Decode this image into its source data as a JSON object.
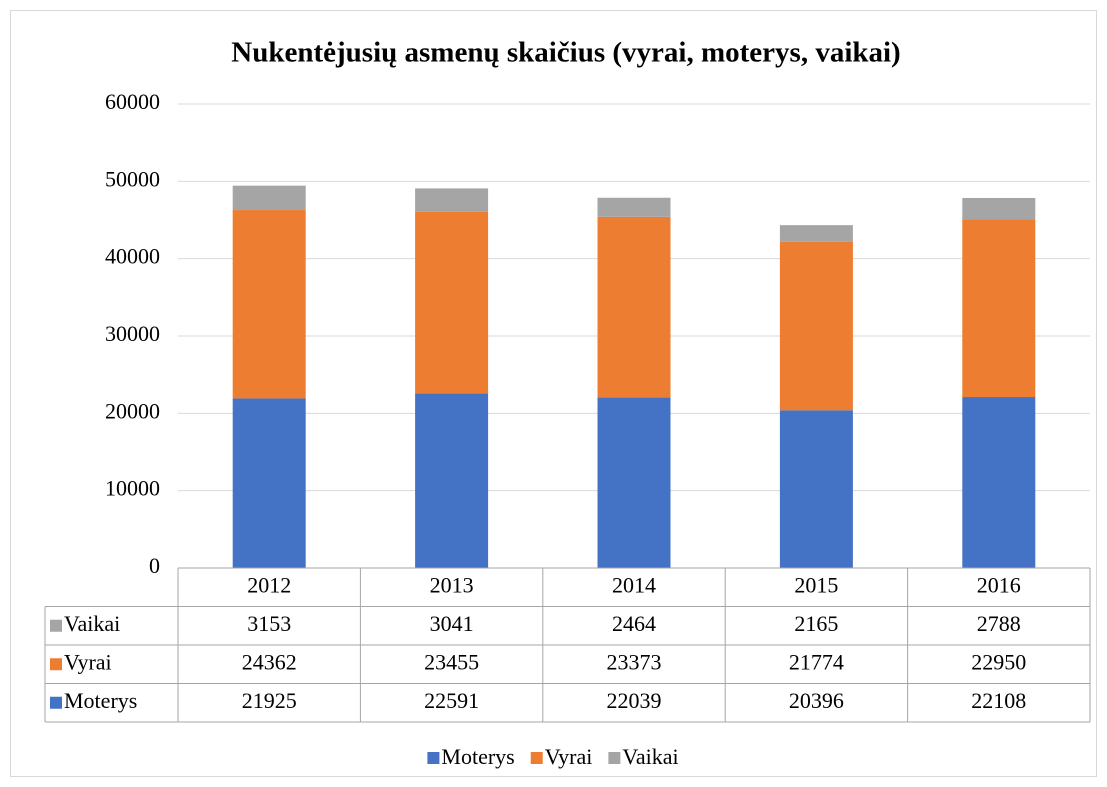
{
  "chart_data": {
    "type": "bar",
    "stacked": true,
    "title": "Nukentėjusių asmenų skaičius (vyrai, moterys, vaikai)",
    "categories": [
      "2012",
      "2013",
      "2014",
      "2015",
      "2016"
    ],
    "series": [
      {
        "name": "Moterys",
        "color": "#4472c4",
        "values": [
          21925,
          22591,
          22039,
          20396,
          22108
        ]
      },
      {
        "name": "Vyrai",
        "color": "#ed7d31",
        "values": [
          24362,
          23455,
          23373,
          21774,
          22950
        ]
      },
      {
        "name": "Vaikai",
        "color": "#a5a5a5",
        "values": [
          3153,
          3041,
          2464,
          2165,
          2788
        ]
      }
    ],
    "ylim": [
      0,
      60000
    ],
    "yticks": [
      0,
      10000,
      20000,
      30000,
      40000,
      50000,
      60000
    ],
    "grid": true
  }
}
